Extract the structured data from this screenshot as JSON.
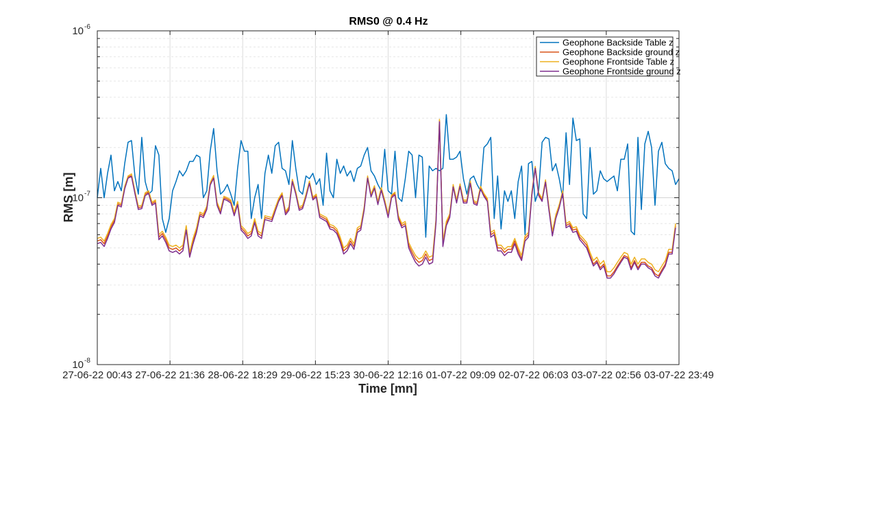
{
  "chart_data": {
    "type": "line",
    "title": "RMS0 @ 0.4 Hz",
    "xlabel": "Time [mn]",
    "ylabel": "RMS [m]",
    "yscale": "log",
    "ylim": [
      1e-08,
      1e-06
    ],
    "y_ticks": [
      {
        "value": 1e-06,
        "base": "10",
        "exp": "-6"
      },
      {
        "value": 1e-07,
        "base": "10",
        "exp": "-7"
      },
      {
        "value": 1e-08,
        "base": "10",
        "exp": "-8"
      }
    ],
    "x_ticks": [
      "27-06-22 00:43",
      "27-06-22 21:36",
      "28-06-22 18:29",
      "29-06-22 15:23",
      "30-06-22 12:16",
      "01-07-22 09:09",
      "02-07-22 06:03",
      "03-07-22 02:56",
      "03-07-22 23:49"
    ],
    "grid": true,
    "legend_position": "top-right",
    "series": [
      {
        "name": "Geophone Backside Table z",
        "color": "#0072BD",
        "values": [
          1e-07,
          1.5e-07,
          1e-07,
          1.4e-07,
          1.8e-07,
          1.1e-07,
          1.25e-07,
          1.1e-07,
          1.6e-07,
          2.15e-07,
          2.2e-07,
          1.35e-07,
          1.05e-07,
          2.3e-07,
          1.25e-07,
          1.05e-07,
          1.1e-07,
          2.05e-07,
          1.8e-07,
          7.5e-08,
          6.2e-08,
          7.5e-08,
          1.1e-07,
          1.25e-07,
          1.45e-07,
          1.35e-07,
          1.45e-07,
          1.65e-07,
          1.65e-07,
          1.8e-07,
          1.75e-07,
          1e-07,
          1.1e-07,
          1.9e-07,
          2.6e-07,
          1.45e-07,
          1.05e-07,
          1.1e-07,
          1.2e-07,
          1.05e-07,
          9e-08,
          1.5e-07,
          2.2e-07,
          1.9e-07,
          1.9e-07,
          7.5e-08,
          1e-07,
          1.2e-07,
          7.5e-08,
          1.4e-07,
          1.8e-07,
          1.4e-07,
          2.05e-07,
          2.15e-07,
          1.5e-07,
          1.45e-07,
          1.2e-07,
          2.2e-07,
          1.5e-07,
          1.1e-07,
          1.05e-07,
          1.35e-07,
          1.3e-07,
          1.4e-07,
          1.2e-07,
          1.3e-07,
          9e-08,
          1.85e-07,
          1.1e-07,
          1e-07,
          1.7e-07,
          1.4e-07,
          1.55e-07,
          1.35e-07,
          1.45e-07,
          1.25e-07,
          1.5e-07,
          1.55e-07,
          1.8e-07,
          2e-07,
          1.45e-07,
          1.35e-07,
          1.2e-07,
          1.1e-07,
          1.95e-07,
          1.1e-07,
          1.05e-07,
          1.9e-07,
          1e-07,
          9.5e-08,
          1.3e-07,
          1.9e-07,
          1.8e-07,
          1e-07,
          1.8e-07,
          1.75e-07,
          5.8e-08,
          1.55e-07,
          1.45e-07,
          1.5e-07,
          1.45e-07,
          1.5e-07,
          3.15e-07,
          1.7e-07,
          1.7e-07,
          1.75e-07,
          1.9e-07,
          1.3e-07,
          1.05e-07,
          1.3e-07,
          1.35e-07,
          1.2e-07,
          1.1e-07,
          2e-07,
          2.1e-07,
          2.3e-07,
          7.5e-08,
          1.35e-07,
          6.5e-08,
          1.1e-07,
          9.5e-08,
          1.1e-07,
          7.5e-08,
          1.25e-07,
          1.55e-07,
          6e-08,
          1.6e-07,
          1.65e-07,
          9.5e-08,
          1.1e-07,
          2.15e-07,
          2.3e-07,
          2.25e-07,
          1.45e-07,
          1.6e-07,
          1.3e-07,
          1e-07,
          2.45e-07,
          1.2e-07,
          3e-07,
          2.2e-07,
          2.25e-07,
          8e-08,
          7.5e-08,
          2e-07,
          1.05e-07,
          1.1e-07,
          1.45e-07,
          1.3e-07,
          1.25e-07,
          1.3e-07,
          1.35e-07,
          1.1e-07,
          1.7e-07,
          1.7e-07,
          2.1e-07,
          6.3e-08,
          6e-08,
          2.3e-07,
          8.5e-08,
          2.1e-07,
          2.5e-07,
          2e-07,
          9e-08,
          1.9e-07,
          2.15e-07,
          1.6e-07,
          1.5e-07,
          1.45e-07,
          1.2e-07,
          1.3e-07
        ]
      },
      {
        "name": "Geophone Backside ground z",
        "color": "#D95319",
        "values": [
          5.5e-08,
          5.6e-08,
          5.3e-08,
          5.9e-08,
          6.7e-08,
          7.3e-08,
          9.2e-08,
          9e-08,
          1.15e-07,
          1.33e-07,
          1.36e-07,
          1.08e-07,
          8.7e-08,
          8.8e-08,
          1.05e-07,
          1.08e-07,
          9.2e-08,
          9.5e-08,
          5.8e-08,
          6.1e-08,
          5.6e-08,
          5e-08,
          4.9e-08,
          5e-08,
          4.8e-08,
          5e-08,
          6.6e-08,
          4.5e-08,
          5.5e-08,
          6.4e-08,
          8e-08,
          7.8e-08,
          8.7e-08,
          1.21e-07,
          1.33e-07,
          9.2e-08,
          8.2e-08,
          1e-07,
          9.8e-08,
          9.5e-08,
          8e-08,
          9.3e-08,
          6.6e-08,
          6.3e-08,
          5.9e-08,
          6.1e-08,
          7.3e-08,
          6.1e-08,
          5.9e-08,
          7.6e-08,
          7.5e-08,
          7.4e-08,
          8.5e-08,
          9.7e-08,
          1.05e-07,
          8.1e-08,
          8.6e-08,
          1.27e-07,
          1.07e-07,
          8.6e-08,
          8.8e-08,
          1.03e-07,
          1.24e-07,
          9.9e-08,
          1.03e-07,
          7.8e-08,
          7.6e-08,
          7.4e-08,
          6.7e-08,
          6.6e-08,
          6.3e-08,
          5.6e-08,
          4.8e-08,
          5e-08,
          5.5e-08,
          5.1e-08,
          6.4e-08,
          6.6e-08,
          8.6e-08,
          1.33e-07,
          1.03e-07,
          1.16e-07,
          9.3e-08,
          1.13e-07,
          9.5e-08,
          7.8e-08,
          1.02e-07,
          1.06e-07,
          7.6e-08,
          6.8e-08,
          7e-08,
          5.2e-08,
          4.7e-08,
          4.3e-08,
          4.1e-08,
          4.2e-08,
          4.6e-08,
          4.2e-08,
          4.3e-08,
          7.3e-08,
          2.92e-07,
          5.3e-08,
          7e-08,
          7.8e-08,
          1.18e-07,
          9.5e-08,
          1.19e-07,
          9.5e-08,
          9.5e-08,
          1.24e-07,
          9.4e-08,
          9.2e-08,
          1.15e-07,
          1.04e-07,
          9.7e-08,
          6e-08,
          6.2e-08,
          5e-08,
          5e-08,
          4.7e-08,
          4.9e-08,
          4.9e-08,
          5.5e-08,
          4.8e-08,
          4.3e-08,
          5.7e-08,
          6e-08,
          1.06e-07,
          1.52e-07,
          1.05e-07,
          9.7e-08,
          1.26e-07,
          8.6e-08,
          6.1e-08,
          7.7e-08,
          8.9e-08,
          1.08e-07,
          6.8e-08,
          7e-08,
          6.4e-08,
          6.5e-08,
          5.8e-08,
          5.5e-08,
          5.2e-08,
          4.5e-08,
          4e-08,
          4.2e-08,
          3.8e-08,
          4e-08,
          3.4e-08,
          3.4e-08,
          3.6e-08,
          3.9e-08,
          4.2e-08,
          4.5e-08,
          4.4e-08,
          3.8e-08,
          4.2e-08,
          3.8e-08,
          4.1e-08,
          4.1e-08,
          3.9e-08,
          3.8e-08,
          3.5e-08,
          3.4e-08,
          3.7e-08,
          4e-08,
          4.7e-08,
          4.7e-08,
          6.8e-08
        ]
      },
      {
        "name": "Geophone Frontside Table z",
        "color": "#EDB120",
        "values": [
          5.7e-08,
          5.8e-08,
          5.5e-08,
          6.1e-08,
          6.9e-08,
          7.5e-08,
          9.4e-08,
          9.2e-08,
          1.17e-07,
          1.35e-07,
          1.39e-07,
          1.1e-07,
          8.9e-08,
          9e-08,
          1.07e-07,
          1.1e-07,
          9.4e-08,
          9.7e-08,
          6e-08,
          6.3e-08,
          5.8e-08,
          5.2e-08,
          5.1e-08,
          5.2e-08,
          5e-08,
          5.2e-08,
          6.8e-08,
          4.7e-08,
          5.7e-08,
          6.6e-08,
          8.2e-08,
          8e-08,
          8.9e-08,
          1.23e-07,
          1.36e-07,
          9.4e-08,
          8.4e-08,
          1.02e-07,
          1e-07,
          9.7e-08,
          8.2e-08,
          9.5e-08,
          6.8e-08,
          6.5e-08,
          6.1e-08,
          6.3e-08,
          7.5e-08,
          6.3e-08,
          6.1e-08,
          7.8e-08,
          7.7e-08,
          7.6e-08,
          8.7e-08,
          9.9e-08,
          1.07e-07,
          8.3e-08,
          8.8e-08,
          1.29e-07,
          1.09e-07,
          8.8e-08,
          9e-08,
          1.05e-07,
          1.26e-07,
          1.01e-07,
          1.05e-07,
          8e-08,
          7.8e-08,
          7.6e-08,
          6.9e-08,
          6.8e-08,
          6.5e-08,
          5.8e-08,
          5e-08,
          5.2e-08,
          5.7e-08,
          5.3e-08,
          6.6e-08,
          6.8e-08,
          8.8e-08,
          1.35e-07,
          1.05e-07,
          1.18e-07,
          9.5e-08,
          1.15e-07,
          9.7e-08,
          8e-08,
          1.04e-07,
          1.08e-07,
          7.8e-08,
          7e-08,
          7.2e-08,
          5.4e-08,
          4.9e-08,
          4.5e-08,
          4.3e-08,
          4.4e-08,
          4.8e-08,
          4.4e-08,
          4.5e-08,
          7.5e-08,
          2.95e-07,
          5.5e-08,
          7.2e-08,
          8e-08,
          1.2e-07,
          9.7e-08,
          1.21e-07,
          9.7e-08,
          9.7e-08,
          1.26e-07,
          9.6e-08,
          9.4e-08,
          1.17e-07,
          1.06e-07,
          9.9e-08,
          6.2e-08,
          6.4e-08,
          5.2e-08,
          5.2e-08,
          4.9e-08,
          5.1e-08,
          5.1e-08,
          5.7e-08,
          5e-08,
          4.5e-08,
          5.9e-08,
          6.2e-08,
          1.08e-07,
          1.54e-07,
          1.07e-07,
          9.9e-08,
          1.28e-07,
          8.8e-08,
          6.3e-08,
          7.9e-08,
          9.1e-08,
          1.1e-07,
          7e-08,
          7.2e-08,
          6.6e-08,
          6.7e-08,
          6e-08,
          5.7e-08,
          5.4e-08,
          4.7e-08,
          4.2e-08,
          4.4e-08,
          4e-08,
          4.2e-08,
          3.6e-08,
          3.6e-08,
          3.8e-08,
          4.1e-08,
          4.4e-08,
          4.7e-08,
          4.6e-08,
          4e-08,
          4.4e-08,
          4e-08,
          4.3e-08,
          4.3e-08,
          4.1e-08,
          4e-08,
          3.7e-08,
          3.6e-08,
          3.9e-08,
          4.2e-08,
          4.9e-08,
          4.9e-08,
          7e-08
        ]
      },
      {
        "name": "Geophone Frontside ground z",
        "color": "#7E2F8E",
        "values": [
          5.3e-08,
          5.4e-08,
          5.1e-08,
          5.7e-08,
          6.5e-08,
          7.1e-08,
          9e-08,
          8.8e-08,
          1.13e-07,
          1.31e-07,
          1.34e-07,
          1.06e-07,
          8.5e-08,
          8.6e-08,
          1.03e-07,
          1.06e-07,
          9e-08,
          9.3e-08,
          5.6e-08,
          5.9e-08,
          5.4e-08,
          4.8e-08,
          4.7e-08,
          4.8e-08,
          4.6e-08,
          4.8e-08,
          6.4e-08,
          4.4e-08,
          5.3e-08,
          6.2e-08,
          7.8e-08,
          7.6e-08,
          8.5e-08,
          1.19e-07,
          1.31e-07,
          9e-08,
          8e-08,
          9.8e-08,
          9.6e-08,
          9.3e-08,
          7.8e-08,
          9.1e-08,
          6.4e-08,
          6.1e-08,
          5.7e-08,
          5.9e-08,
          7.1e-08,
          5.9e-08,
          5.7e-08,
          7.4e-08,
          7.3e-08,
          7.2e-08,
          8.3e-08,
          9.5e-08,
          1.03e-07,
          7.9e-08,
          8.4e-08,
          1.25e-07,
          1.05e-07,
          8.4e-08,
          8.6e-08,
          1.01e-07,
          1.22e-07,
          9.7e-08,
          1.01e-07,
          7.6e-08,
          7.4e-08,
          7.2e-08,
          6.5e-08,
          6.4e-08,
          6.1e-08,
          5.4e-08,
          4.6e-08,
          4.8e-08,
          5.3e-08,
          4.9e-08,
          6.2e-08,
          6.4e-08,
          8.4e-08,
          1.31e-07,
          1.01e-07,
          1.14e-07,
          9.1e-08,
          1.11e-07,
          9.3e-08,
          7.6e-08,
          1e-07,
          1.04e-07,
          7.4e-08,
          6.6e-08,
          6.8e-08,
          5e-08,
          4.5e-08,
          4.1e-08,
          3.9e-08,
          4e-08,
          4.4e-08,
          4e-08,
          4.1e-08,
          7.1e-08,
          2.85e-07,
          5.1e-08,
          6.8e-08,
          7.6e-08,
          1.16e-07,
          9.3e-08,
          1.17e-07,
          9.3e-08,
          9.3e-08,
          1.22e-07,
          9.2e-08,
          9e-08,
          1.13e-07,
          1.02e-07,
          9.5e-08,
          5.8e-08,
          6e-08,
          4.8e-08,
          4.8e-08,
          4.5e-08,
          4.7e-08,
          4.7e-08,
          5.3e-08,
          4.6e-08,
          4.2e-08,
          5.5e-08,
          5.8e-08,
          1.04e-07,
          1.5e-07,
          1.03e-07,
          9.5e-08,
          1.24e-07,
          8.4e-08,
          5.9e-08,
          7.5e-08,
          8.7e-08,
          1.06e-07,
          6.6e-08,
          6.8e-08,
          6.2e-08,
          6.3e-08,
          5.6e-08,
          5.3e-08,
          5e-08,
          4.4e-08,
          3.9e-08,
          4.1e-08,
          3.7e-08,
          3.9e-08,
          3.3e-08,
          3.3e-08,
          3.5e-08,
          3.8e-08,
          4.1e-08,
          4.4e-08,
          4.3e-08,
          3.7e-08,
          4.1e-08,
          3.7e-08,
          4e-08,
          4e-08,
          3.8e-08,
          3.7e-08,
          3.4e-08,
          3.3e-08,
          3.6e-08,
          3.9e-08,
          4.6e-08,
          4.6e-08,
          6.6e-08
        ]
      }
    ]
  }
}
